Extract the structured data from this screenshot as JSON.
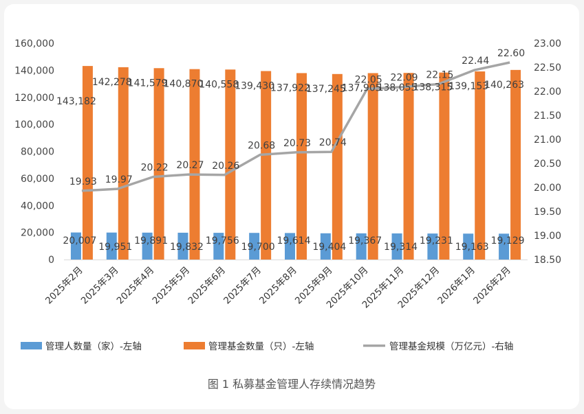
{
  "chart_data": {
    "type": "bar",
    "caption": "图 1  私募基金管理人存续情况趋势",
    "categories": [
      "2025年2月",
      "2025年3月",
      "2025年4月",
      "2025年5月",
      "2025年6月",
      "2025年7月",
      "2025年8月",
      "2025年9月",
      "2025年10月",
      "2025年11月",
      "2025年12月",
      "2026年1月",
      "2026年2月"
    ],
    "series": [
      {
        "name": "管理人数量（家）-左轴",
        "axis": "left",
        "kind": "bar",
        "color": "#5b9bd5",
        "values": [
          20007,
          19951,
          19891,
          19832,
          19756,
          19700,
          19614,
          19404,
          19367,
          19314,
          19231,
          19163,
          19129
        ],
        "labels": [
          "20,007",
          "19,951",
          "19,891",
          "19,832",
          "19,756",
          "19,700",
          "19,614",
          "19,404",
          "19,367",
          "19,314",
          "19,231",
          "19,163",
          "19,129"
        ]
      },
      {
        "name": "管理基金数量（只）-左轴",
        "axis": "left",
        "kind": "bar",
        "color": "#ed7d31",
        "values": [
          143182,
          142278,
          141579,
          140870,
          140558,
          139430,
          137922,
          137245,
          137905,
          138055,
          138315,
          139153,
          140263
        ],
        "labels": [
          "143,182",
          "142,278",
          "141,579",
          "140,870",
          "140,558",
          "139,430",
          "137,922",
          "137,245",
          "137,905",
          "138,055",
          "138,315",
          "139,153",
          "140,263"
        ]
      },
      {
        "name": "管理基金规模（万亿元）-右轴",
        "axis": "right",
        "kind": "line",
        "color": "#a5a5a5",
        "values": [
          19.93,
          19.97,
          20.22,
          20.27,
          20.26,
          20.68,
          20.73,
          20.74,
          22.05,
          22.09,
          22.15,
          22.44,
          22.6
        ],
        "labels": [
          "19.93",
          "19.97",
          "20.22",
          "20.27",
          "20.26",
          "20.68",
          "20.73",
          "20.74",
          "22.05",
          "22.09",
          "22.15",
          "22.44",
          "22.60"
        ]
      }
    ],
    "left_axis": {
      "min": 0,
      "max": 160000,
      "ticks": [
        0,
        20000,
        40000,
        60000,
        80000,
        100000,
        120000,
        140000,
        160000
      ],
      "tick_labels": [
        "0",
        "20,000",
        "40,000",
        "60,000",
        "80,000",
        "100,000",
        "120,000",
        "140,000",
        "160,000"
      ]
    },
    "right_axis": {
      "min": 18.5,
      "max": 23.0,
      "ticks": [
        18.5,
        19.0,
        19.5,
        20.0,
        20.5,
        21.0,
        21.5,
        22.0,
        22.5,
        23.0
      ],
      "tick_labels": [
        "18.50",
        "19.00",
        "19.50",
        "20.00",
        "20.50",
        "21.00",
        "21.50",
        "22.00",
        "22.50",
        "23.00"
      ]
    },
    "legend_position": "bottom"
  }
}
